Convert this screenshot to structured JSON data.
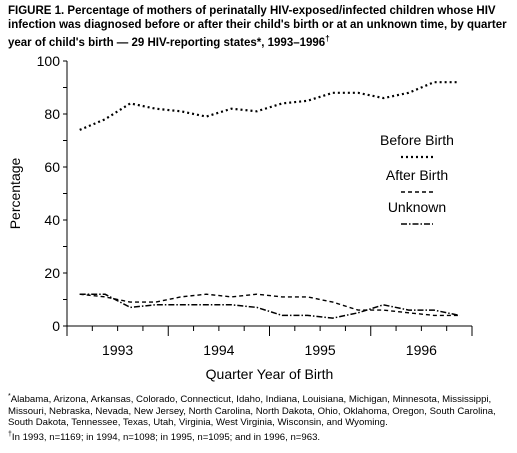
{
  "figure": {
    "title": "FIGURE 1. Percentage of mothers of perinatally HIV-exposed/infected children whose HIV infection was diagnosed before or after their child's birth or at an unknown time, by quarter year of child's birth — 29 HIV-reporting states*, 1993–1996",
    "title_sup": "†"
  },
  "footnotes": {
    "star_mark": "*",
    "star_text": "Alabama, Arizona, Arkansas, Colorado, Connecticut, Idaho, Indiana, Louisiana, Michigan, Minnesota, Mississippi, Missouri, Nebraska, Nevada, New Jersey, North Carolina, North Dakota, Ohio, Oklahoma, Oregon, South Carolina, South Dakota, Tennessee, Texas, Utah, Virginia, West Virginia, Wisconsin, and Wyoming.",
    "dagger_mark": "†",
    "dagger_text": "In 1993, n=1169; in 1994, n=1098; in 1995, n=1095; and in 1996, n=963."
  },
  "chart_data": {
    "type": "line",
    "xlabel": "Quarter Year of Birth",
    "ylabel": "Percentage",
    "ylim": [
      0,
      100
    ],
    "yticks": [
      0,
      20,
      40,
      60,
      80,
      100
    ],
    "xlim": [
      0.5,
      16.5
    ],
    "year_labels": [
      "1993",
      "1994",
      "1995",
      "1996"
    ],
    "x": [
      1,
      2,
      3,
      4,
      5,
      6,
      7,
      8,
      9,
      10,
      11,
      12,
      13,
      14,
      15,
      16
    ],
    "grid": false,
    "legend_position": "right",
    "series": [
      {
        "name": "Before Birth",
        "style": "dotted",
        "values": [
          74,
          78,
          84,
          82,
          81,
          79,
          82,
          81,
          84,
          85,
          88,
          88,
          86,
          88,
          92,
          92
        ]
      },
      {
        "name": "After Birth",
        "style": "dashed",
        "values": [
          12,
          11,
          9,
          9,
          11,
          12,
          11,
          12,
          11,
          11,
          9,
          6,
          6,
          5,
          4,
          4
        ]
      },
      {
        "name": "Unknown",
        "style": "dashdot",
        "values": [
          12,
          12,
          7,
          8,
          8,
          8,
          8,
          7,
          4,
          4,
          3,
          5,
          8,
          6,
          6,
          4
        ]
      }
    ]
  }
}
